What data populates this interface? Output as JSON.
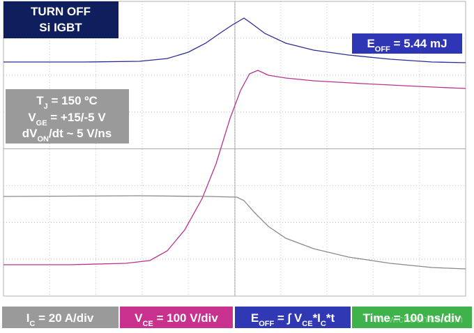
{
  "title_box": {
    "lines": [
      "TURN OFF",
      "Si IGBT"
    ]
  },
  "energy_box": {
    "parts": [
      "E",
      "OFF",
      " = 5.44 mJ"
    ]
  },
  "conditions": {
    "lines": [
      [
        "T",
        "J",
        " = 150 ºC"
      ],
      [
        "V",
        "GE",
        " = +15/-5 V"
      ],
      [
        "dV",
        "ON",
        "/dt ~ 5 V/ns"
      ]
    ]
  },
  "legend": [
    [
      "I",
      "C",
      " = 20 A/div"
    ],
    [
      "V",
      "CE",
      " = 100 V/div"
    ],
    [
      "E",
      "OFF",
      " = ∫ V",
      "CE",
      "*I",
      "C",
      "*t"
    ],
    [
      "Time = 100 ns/div"
    ]
  ],
  "watermark": "www.cntronics.com"
}
